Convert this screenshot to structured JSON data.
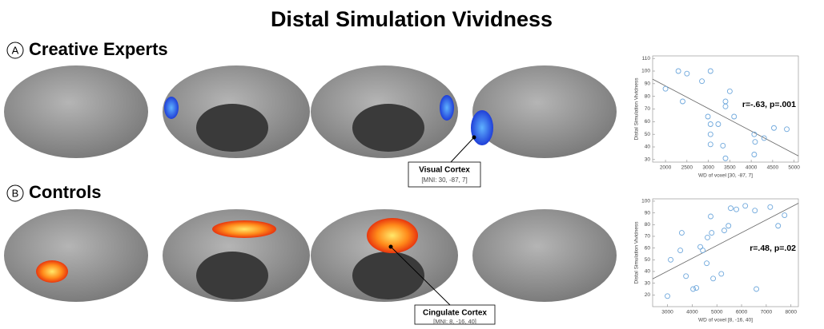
{
  "figure": {
    "title": "Distal Simulation Vividness",
    "panels": [
      {
        "letter": "A",
        "title": "Creative Experts",
        "callout": {
          "title": "Visual Cortex",
          "subtitle": "[MNI: 30, -87, 7]"
        }
      },
      {
        "letter": "B",
        "title": "Controls",
        "callout": {
          "title": "Cingulate Cortex",
          "subtitle": "[MNI: 8, -16, 40]"
        }
      }
    ]
  },
  "chart_data": [
    {
      "type": "scatter",
      "y_label": "Distal Simulation Vividness",
      "x_label": "WD of voxel [30, -87, 7]",
      "annotation": "r=-.63, p=.001",
      "color": "#6fa8dc",
      "trendline": true,
      "x": [
        2300,
        2500,
        2000,
        2400,
        2850,
        3050,
        2990,
        3050,
        3230,
        3050,
        3050,
        3400,
        3400,
        3500,
        3600,
        3340,
        3400,
        4070,
        4090,
        4070,
        4530,
        4830,
        4300
      ],
      "values": [
        100,
        98,
        86,
        76,
        92,
        100,
        64,
        58,
        58,
        50,
        42,
        76,
        72,
        84,
        64,
        41,
        31,
        50,
        44,
        34,
        55,
        54,
        47
      ],
      "xlim": [
        1700,
        5100
      ],
      "xticks": [
        2000,
        2500,
        3000,
        3500,
        4000,
        4500,
        5000
      ],
      "ylim": [
        28,
        112
      ],
      "yticks": [
        30,
        40,
        50,
        60,
        70,
        80,
        90,
        100,
        110
      ]
    },
    {
      "type": "scatter",
      "y_label": "Distal Simulation Vividness",
      "x_label": "WD of voxel [8, -16, 40]",
      "annotation": "r=.48, p=.02",
      "color": "#6fa8dc",
      "trendline": true,
      "x": [
        3000,
        3130,
        3520,
        3580,
        3750,
        4170,
        4040,
        4330,
        4590,
        4430,
        4620,
        4790,
        4750,
        4850,
        5180,
        5300,
        5470,
        5560,
        5790,
        6150,
        6600,
        6540,
        7160,
        7480,
        7740
      ],
      "values": [
        19,
        50,
        58,
        73,
        36,
        26,
        25,
        61,
        47,
        58,
        69,
        73,
        87,
        34,
        38,
        75,
        79,
        94,
        93,
        96,
        25,
        92,
        95,
        79,
        88
      ],
      "xlim": [
        2400,
        8300
      ],
      "xticks": [
        3000,
        4000,
        5000,
        6000,
        7000,
        8000
      ],
      "ylim": [
        10,
        102
      ],
      "yticks": [
        20,
        30,
        40,
        50,
        60,
        70,
        80,
        90,
        100
      ]
    }
  ]
}
